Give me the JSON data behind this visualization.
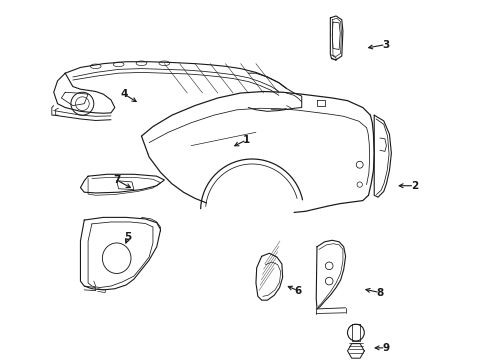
{
  "background_color": "#ffffff",
  "line_color": "#1a1a1a",
  "line_width": 0.8,
  "fig_width": 4.89,
  "fig_height": 3.6,
  "dpi": 100,
  "label_positions": {
    "1": [
      0.495,
      0.635,
      0.455,
      0.615
    ],
    "2": [
      0.935,
      0.515,
      0.885,
      0.515
    ],
    "3": [
      0.86,
      0.885,
      0.805,
      0.875
    ],
    "4": [
      0.175,
      0.755,
      0.215,
      0.73
    ],
    "5": [
      0.185,
      0.38,
      0.175,
      0.355
    ],
    "6": [
      0.63,
      0.24,
      0.595,
      0.255
    ],
    "7": [
      0.155,
      0.53,
      0.2,
      0.505
    ],
    "8": [
      0.845,
      0.235,
      0.798,
      0.245
    ],
    "9": [
      0.86,
      0.09,
      0.822,
      0.09
    ]
  }
}
